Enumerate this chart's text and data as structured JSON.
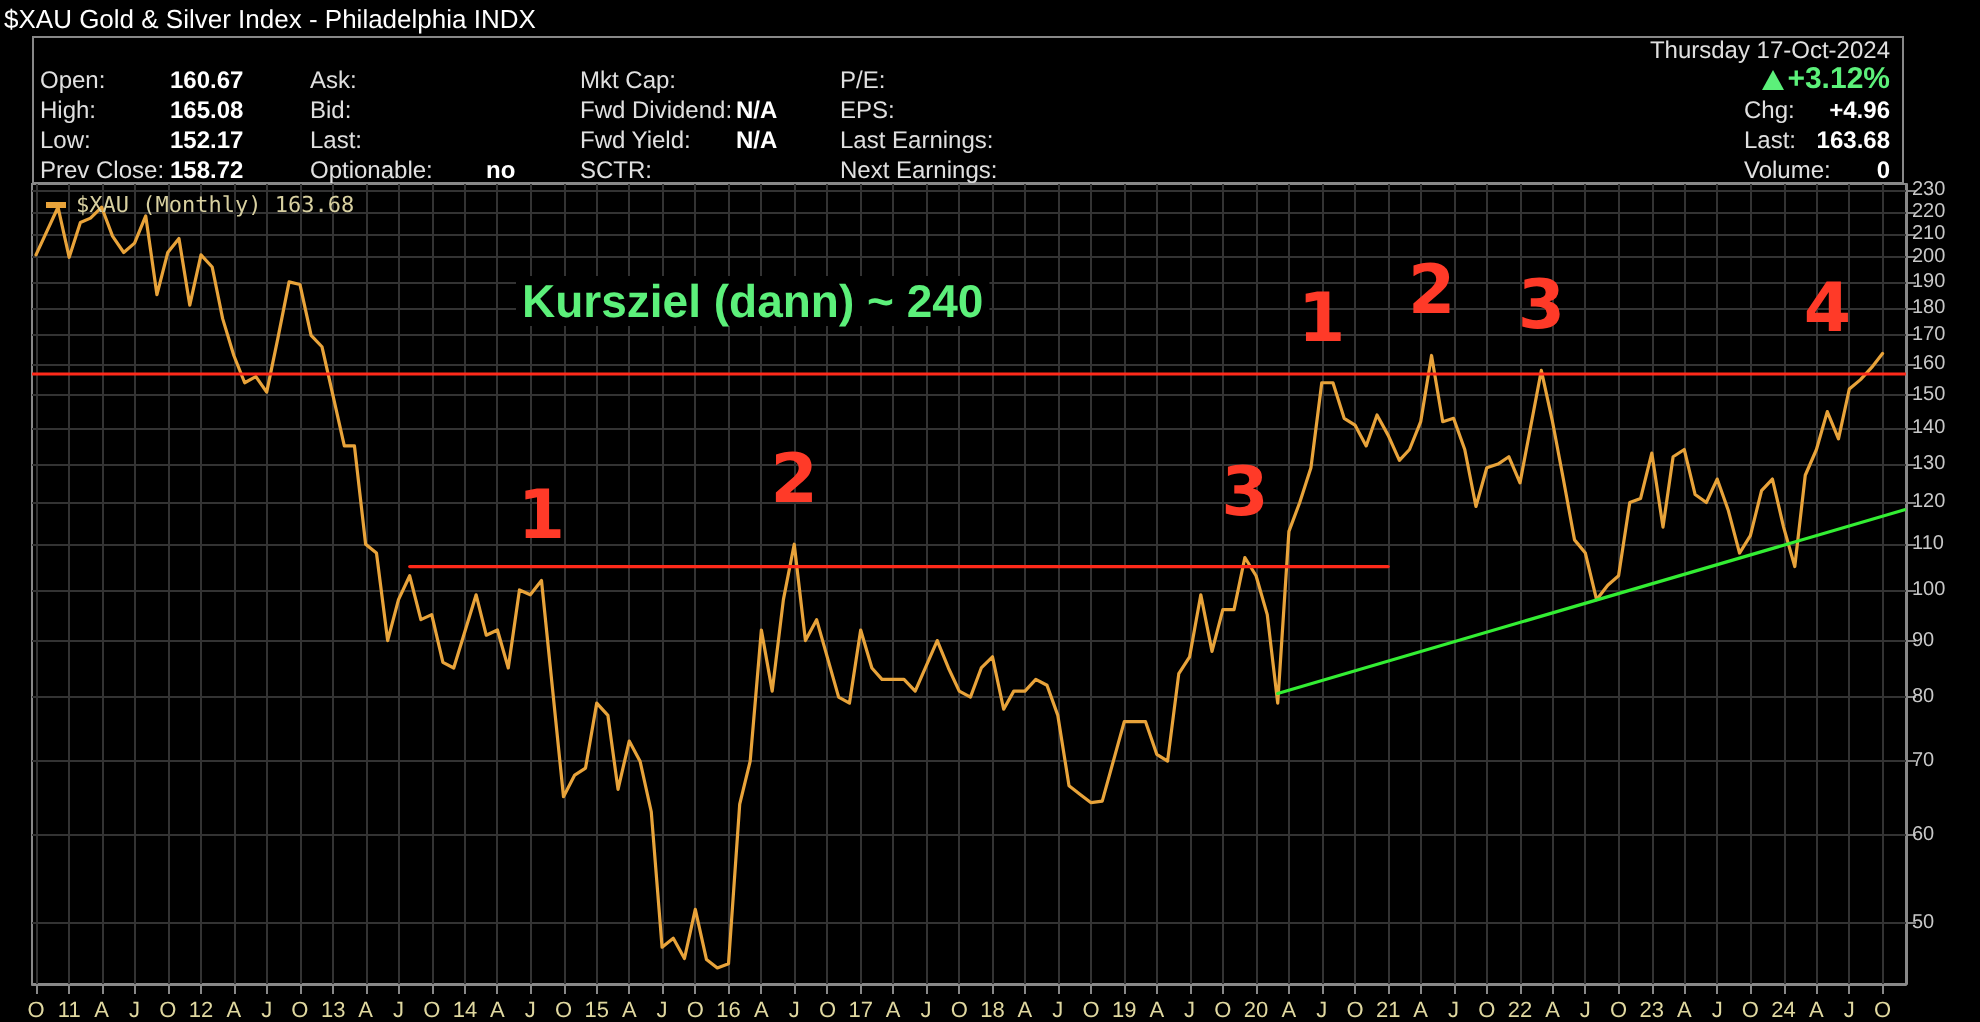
{
  "chart_data": {
    "type": "line",
    "title": "$XAU Gold & Silver Index - Philadelphia INDX",
    "annotations": [
      "Kursziel (dann) ~ 240",
      {
        "text": "1",
        "x": "2014-08",
        "y": 102
      },
      {
        "text": "2",
        "x": "2016-07",
        "y": 110
      },
      {
        "text": "3",
        "x": "2019-12",
        "y": 107
      },
      {
        "text": "1",
        "x": "2020-07",
        "y": 154
      },
      {
        "text": "2",
        "x": "2021-05",
        "y": 163
      },
      {
        "text": "3",
        "x": "2022-03",
        "y": 158
      },
      {
        "text": "4",
        "x": "2024-05",
        "y": 157
      },
      "Open:",
      "160.67",
      "High:",
      "165.08",
      "Low:",
      "152.17",
      "Prev Close:",
      "158.72",
      "Ask:",
      "Bid:",
      "Last:",
      "Optionable:",
      "no",
      "Mkt Cap:",
      "Fwd Dividend:",
      "N/A",
      "Fwd Yield:",
      "N/A",
      "SCTR:",
      "P/E:",
      "EPS:",
      "Last Earnings:",
      "Next Earnings:",
      "Thursday 17-Oct-2024",
      "+3.12%",
      "Chg:",
      "+4.96",
      "Last:",
      "163.68",
      "Volume:",
      "0"
    ],
    "series": [
      {
        "name": "$XAU (Monthly) 163.68",
        "color": "#e8a33a",
        "x": [
          "2010-10",
          "2010-12",
          "2011-01",
          "2011-02",
          "2011-03",
          "2011-04",
          "2011-05",
          "2011-06",
          "2011-07",
          "2011-08",
          "2011-09",
          "2011-10",
          "2011-11",
          "2011-12",
          "2012-01",
          "2012-02",
          "2012-03",
          "2012-04",
          "2012-05",
          "2012-06",
          "2012-07",
          "2012-08",
          "2012-09",
          "2012-10",
          "2012-11",
          "2012-12",
          "2013-02",
          "2013-03",
          "2013-04",
          "2013-05",
          "2013-06",
          "2013-07",
          "2013-08",
          "2013-09",
          "2013-10",
          "2013-11",
          "2013-12",
          "2014-02",
          "2014-03",
          "2014-04",
          "2014-05",
          "2014-06",
          "2014-07",
          "2014-08",
          "2014-10",
          "2014-11",
          "2014-12",
          "2015-01",
          "2015-02",
          "2015-03",
          "2015-04",
          "2015-05",
          "2015-06",
          "2015-07",
          "2015-08",
          "2015-09",
          "2015-10",
          "2015-11",
          "2015-12",
          "2016-01",
          "2016-02",
          "2016-03",
          "2016-04",
          "2016-05",
          "2016-06",
          "2016-07",
          "2016-08",
          "2016-09",
          "2016-11",
          "2016-12",
          "2017-01",
          "2017-02",
          "2017-03",
          "2017-05",
          "2017-06",
          "2017-08",
          "2017-09",
          "2017-10",
          "2017-11",
          "2017-12",
          "2018-01",
          "2018-02",
          "2018-03",
          "2018-04",
          "2018-05",
          "2018-06",
          "2018-07",
          "2018-08",
          "2018-09",
          "2018-10",
          "2018-11",
          "2019-01",
          "2019-02",
          "2019-03",
          "2019-04",
          "2019-05",
          "2019-06",
          "2019-07",
          "2019-08",
          "2019-09",
          "2019-10",
          "2019-11",
          "2019-12",
          "2020-01",
          "2020-02",
          "2020-03",
          "2020-04",
          "2020-05",
          "2020-06",
          "2020-07",
          "2020-08",
          "2020-09",
          "2020-10",
          "2020-11",
          "2020-12",
          "2021-01",
          "2021-02",
          "2021-03",
          "2021-04",
          "2021-05",
          "2021-06",
          "2021-07",
          "2021-08",
          "2021-09",
          "2021-10",
          "2021-11",
          "2021-12",
          "2022-01",
          "2022-03",
          "2022-04",
          "2022-05",
          "2022-06",
          "2022-07",
          "2022-08",
          "2022-09",
          "2022-10",
          "2022-11",
          "2022-12",
          "2023-01",
          "2023-02",
          "2023-03",
          "2023-04",
          "2023-05",
          "2023-06",
          "2023-07",
          "2023-08",
          "2023-09",
          "2023-10",
          "2023-11",
          "2023-12",
          "2024-01",
          "2024-02",
          "2024-03",
          "2024-04",
          "2024-05",
          "2024-06",
          "2024-07",
          "2024-08",
          "2024-09",
          "2024-10"
        ],
        "values": [
          201,
          222,
          200,
          215,
          217,
          222,
          209,
          202,
          206,
          218,
          185,
          202,
          208,
          181,
          201,
          196,
          176,
          163,
          154,
          156,
          151,
          169,
          190,
          189,
          170,
          166,
          135,
          135,
          110,
          108,
          90,
          98,
          103,
          94,
          95,
          86,
          85,
          99,
          91,
          92,
          85,
          100,
          99,
          102,
          65,
          68,
          69,
          79,
          77,
          66,
          73,
          70,
          63,
          47.5,
          48.4,
          46.4,
          51.4,
          46.3,
          45.5,
          45.9,
          64,
          70,
          92,
          81,
          98,
          110,
          90,
          94,
          80,
          79,
          92,
          85,
          83,
          83,
          81,
          90,
          85,
          81,
          80,
          85,
          87,
          78,
          81,
          81,
          83,
          82,
          77,
          66.5,
          65.3,
          64.2,
          64.4,
          76,
          76,
          76,
          71,
          70,
          84,
          87,
          99,
          88,
          96,
          96,
          107,
          103,
          95,
          79,
          113,
          120,
          129,
          154,
          154,
          143,
          141,
          135,
          144,
          138,
          131,
          134,
          142,
          163,
          142,
          143,
          134,
          119,
          129,
          130,
          132,
          125,
          158,
          142,
          126,
          111,
          108,
          98,
          101,
          103,
          120,
          121,
          133,
          114,
          132,
          134,
          122,
          120,
          126,
          118,
          108,
          112,
          123,
          126,
          114,
          105,
          127,
          134,
          145,
          137,
          152,
          155,
          159,
          163.68
        ]
      },
      {
        "color": "#ff2a1a",
        "x": [
          "2013-08",
          "2021-01"
        ],
        "values": [
          105,
          105
        ]
      },
      {
        "color": "#33ee33",
        "x": [
          "2020-03",
          "2024-12"
        ],
        "values": [
          80.6,
          118.2
        ]
      }
    ],
    "xlim": [
      "2010-09-20",
      "2024-12-05"
    ],
    "xticks": [
      {
        "value": "2010-10",
        "label": "O"
      },
      {
        "value": "2011-01",
        "label": "11"
      },
      {
        "value": "2011-04",
        "label": "A"
      },
      {
        "value": "2011-07",
        "label": "J"
      },
      {
        "value": "2011-10",
        "label": "O"
      },
      {
        "value": "2012-01",
        "label": "12"
      },
      {
        "value": "2012-04",
        "label": "A"
      },
      {
        "value": "2012-07",
        "label": "J"
      },
      {
        "value": "2012-10",
        "label": "O"
      },
      {
        "value": "2013-01",
        "label": "13"
      },
      {
        "value": "2013-04",
        "label": "A"
      },
      {
        "value": "2013-07",
        "label": "J"
      },
      {
        "value": "2013-10",
        "label": "O"
      },
      {
        "value": "2014-01",
        "label": "14"
      },
      {
        "value": "2014-04",
        "label": "A"
      },
      {
        "value": "2014-07",
        "label": "J"
      },
      {
        "value": "2014-10",
        "label": "O"
      },
      {
        "value": "2015-01",
        "label": "15"
      },
      {
        "value": "2015-04",
        "label": "A"
      },
      {
        "value": "2015-07",
        "label": "J"
      },
      {
        "value": "2015-10",
        "label": "O"
      },
      {
        "value": "2016-01",
        "label": "16"
      },
      {
        "value": "2016-04",
        "label": "A"
      },
      {
        "value": "2016-07",
        "label": "J"
      },
      {
        "value": "2016-10",
        "label": "O"
      },
      {
        "value": "2017-01",
        "label": "17"
      },
      {
        "value": "2017-04",
        "label": "A"
      },
      {
        "value": "2017-07",
        "label": "J"
      },
      {
        "value": "2017-10",
        "label": "O"
      },
      {
        "value": "2018-01",
        "label": "18"
      },
      {
        "value": "2018-04",
        "label": "A"
      },
      {
        "value": "2018-07",
        "label": "J"
      },
      {
        "value": "2018-10",
        "label": "O"
      },
      {
        "value": "2019-01",
        "label": "19"
      },
      {
        "value": "2019-04",
        "label": "A"
      },
      {
        "value": "2019-07",
        "label": "J"
      },
      {
        "value": "2019-10",
        "label": "O"
      },
      {
        "value": "2020-01",
        "label": "20"
      },
      {
        "value": "2020-04",
        "label": "A"
      },
      {
        "value": "2020-07",
        "label": "J"
      },
      {
        "value": "2020-10",
        "label": "O"
      },
      {
        "value": "2021-01",
        "label": "21"
      },
      {
        "value": "2021-04",
        "label": "A"
      },
      {
        "value": "2021-07",
        "label": "J"
      },
      {
        "value": "2021-10",
        "label": "O"
      },
      {
        "value": "2022-01",
        "label": "22"
      },
      {
        "value": "2022-04",
        "label": "A"
      },
      {
        "value": "2022-07",
        "label": "J"
      },
      {
        "value": "2022-10",
        "label": "O"
      },
      {
        "value": "2023-01",
        "label": "23"
      },
      {
        "value": "2023-04",
        "label": "A"
      },
      {
        "value": "2023-07",
        "label": "J"
      },
      {
        "value": "2023-10",
        "label": "O"
      },
      {
        "value": "2024-01",
        "label": "24"
      },
      {
        "value": "2024-04",
        "label": "A"
      },
      {
        "value": "2024-07",
        "label": "J"
      },
      {
        "value": "2024-10",
        "label": "O"
      }
    ],
    "ylim": [
      44,
      233
    ],
    "yticks": [
      50,
      60,
      70,
      80,
      90,
      100,
      110,
      120,
      130,
      140,
      150,
      160,
      170,
      180,
      190,
      200,
      210,
      220,
      230
    ],
    "log": "y",
    "ref_lines": [
      {
        "axis": "y",
        "value": 157,
        "color": "#ff2a1a",
        "line_style": "solid"
      }
    ],
    "grid": true,
    "legend": "top left",
    "marker": "none",
    "line_style": "solid"
  }
}
